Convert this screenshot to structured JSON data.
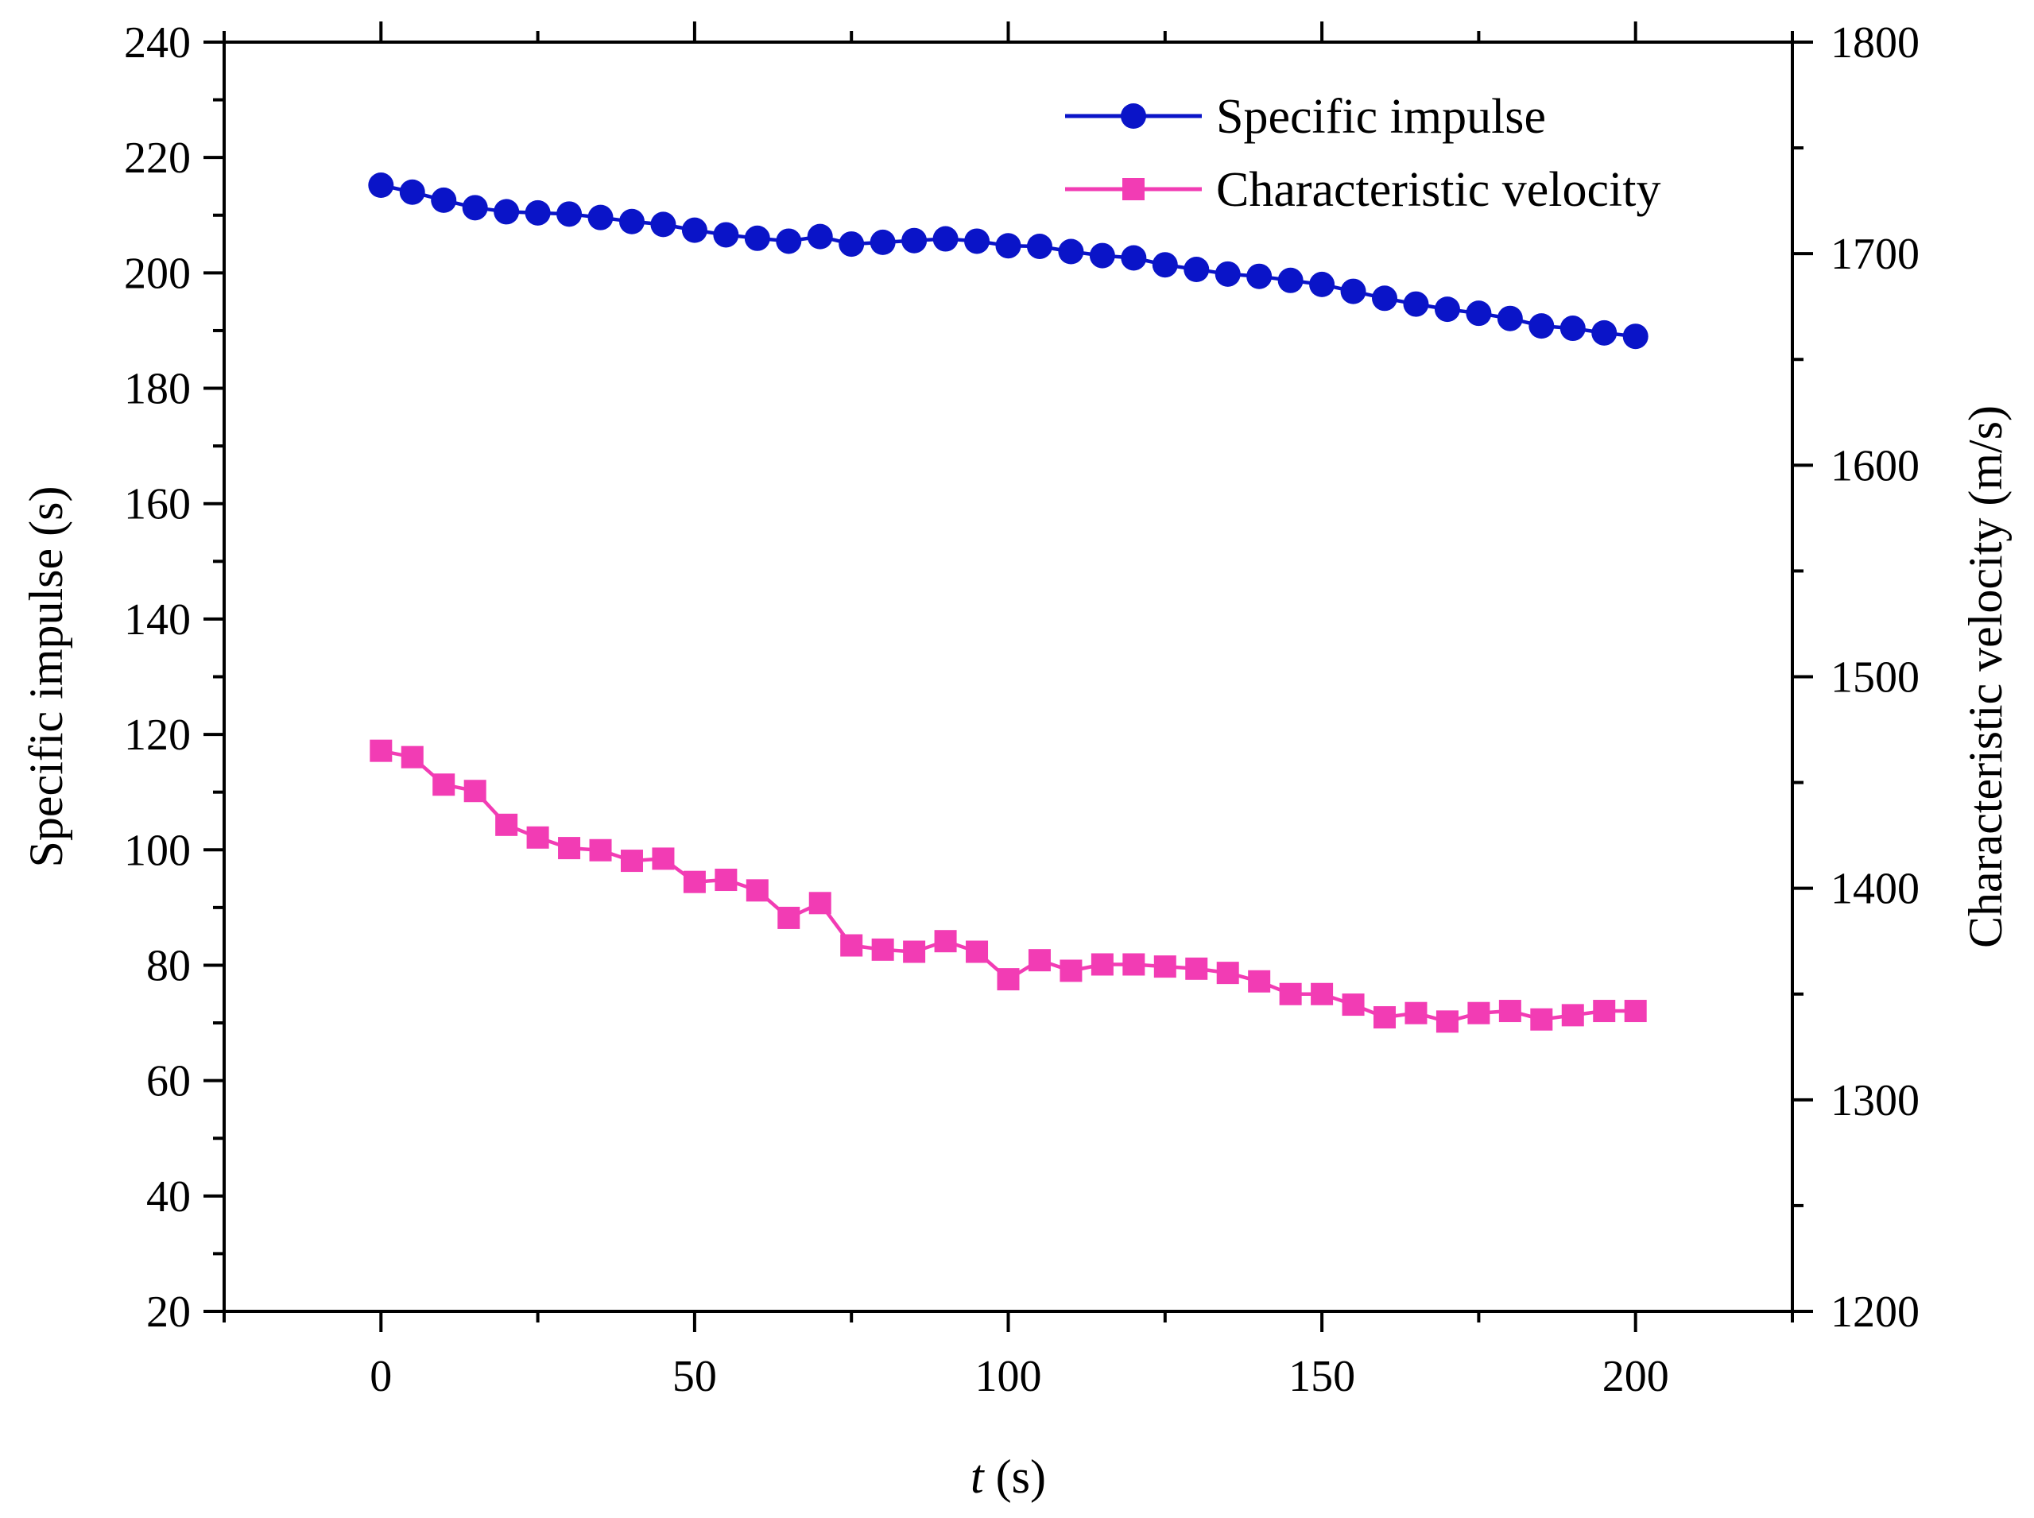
{
  "chart_data": {
    "type": "line",
    "title": "",
    "xlabel": {
      "italic": "t",
      "rest": " (s)"
    },
    "ylabel_left": "Specific impulse (s)",
    "ylabel_right": "Characteristic velocity (m/s)",
    "xlim": [
      -25,
      225
    ],
    "ylim_left": [
      20,
      240
    ],
    "ylim_right": [
      1200,
      1800
    ],
    "x_ticks": [
      "0",
      "50",
      "100",
      "150",
      "200"
    ],
    "y_left_ticks": [
      "20",
      "40",
      "60",
      "80",
      "100",
      "120",
      "140",
      "160",
      "180",
      "200",
      "220",
      "240"
    ],
    "y_right_ticks": [
      "1200",
      "1300",
      "1400",
      "1500",
      "1600",
      "1700",
      "1800"
    ],
    "legend": {
      "position": "top-right"
    },
    "series": [
      {
        "name": "Specific impulse",
        "axis": "left",
        "marker": "circle",
        "color": "#0a14c8",
        "x": [
          0,
          5,
          10,
          15,
          20,
          25,
          30,
          35,
          40,
          45,
          50,
          55,
          60,
          65,
          70,
          75,
          80,
          85,
          90,
          95,
          100,
          105,
          110,
          115,
          120,
          125,
          130,
          135,
          140,
          145,
          150,
          155,
          160,
          165,
          170,
          175,
          180,
          185,
          190,
          195,
          200
        ],
        "values": [
          215.2,
          214.0,
          212.6,
          211.3,
          210.6,
          210.4,
          210.2,
          209.6,
          208.9,
          208.4,
          207.4,
          206.6,
          206.0,
          205.5,
          206.3,
          205.0,
          205.3,
          205.6,
          205.9,
          205.5,
          204.7,
          204.6,
          203.7,
          203.0,
          202.6,
          201.4,
          200.6,
          199.8,
          199.4,
          198.7,
          198.0,
          196.8,
          195.6,
          194.6,
          193.7,
          193.0,
          192.1,
          190.8,
          190.4,
          189.6,
          189.0
        ]
      },
      {
        "name": "Characteristic velocity",
        "axis": "right",
        "marker": "square",
        "color": "#f23cb4",
        "x": [
          0,
          5,
          10,
          15,
          20,
          25,
          30,
          35,
          40,
          45,
          50,
          55,
          60,
          65,
          70,
          75,
          80,
          85,
          90,
          95,
          100,
          105,
          110,
          115,
          120,
          125,
          130,
          135,
          140,
          145,
          150,
          155,
          160,
          165,
          170,
          175,
          180,
          185,
          190,
          195,
          200
        ],
        "values": [
          1465,
          1462,
          1449,
          1446,
          1430,
          1424,
          1419,
          1418,
          1413,
          1414,
          1403,
          1404,
          1399,
          1386,
          1393,
          1373,
          1371,
          1370,
          1375,
          1370,
          1357,
          1366,
          1361,
          1364,
          1364,
          1363,
          1362,
          1360,
          1356,
          1350,
          1350,
          1345,
          1339,
          1341,
          1337,
          1341,
          1342,
          1338,
          1340,
          1342,
          1342
        ]
      }
    ]
  }
}
